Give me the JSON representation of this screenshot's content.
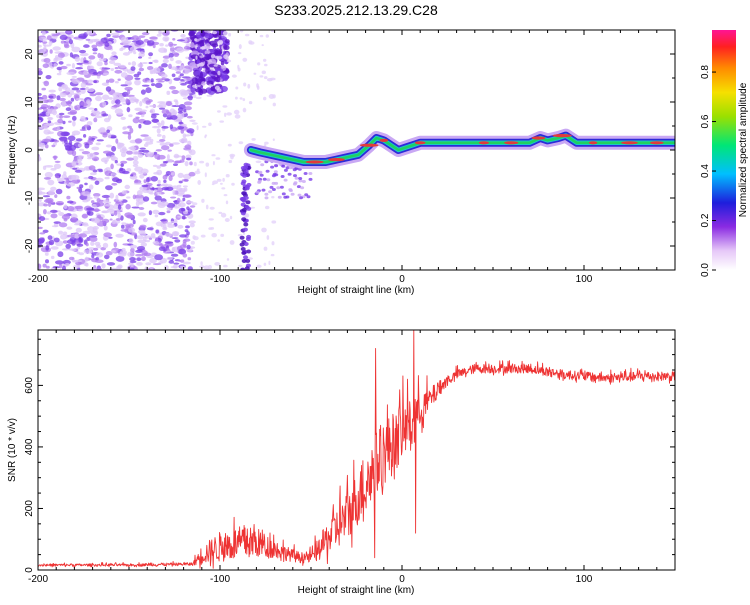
{
  "title": "S233.2025.212.13.29.C28",
  "colors": {
    "snr_line": "#ee3333",
    "speckle": "#7a3ee8",
    "ridge_outer": "#2b2bd8",
    "ridge_mid": "#18c8c8",
    "ridge_core": "#e23a3a"
  },
  "chart_data": [
    {
      "type": "heatmap",
      "xlabel": "Height of straight line (km)",
      "ylabel": "Frequency (Hz)",
      "xlim": [
        -200,
        150
      ],
      "ylim": [
        -25,
        25
      ],
      "x_ticks": [
        -200,
        -100,
        0,
        100
      ],
      "x_tick_labels": [
        "-200",
        "-100",
        "0",
        "100"
      ],
      "y_ticks": [
        -20,
        -10,
        0,
        10,
        20
      ],
      "y_tick_labels": [
        "-20",
        "-10",
        "0",
        "10",
        "20"
      ],
      "grid": false,
      "colorbar": {
        "label": "Normalized spectral amplitude",
        "range": [
          0,
          0.97
        ],
        "ticks": [
          0,
          0.2,
          0.4,
          0.6,
          0.8
        ],
        "tick_labels": [
          "0.0",
          "0.2",
          "0.4",
          "0.6",
          "0.8"
        ]
      },
      "ridge": {
        "x": [
          -83,
          -78,
          -72,
          -66,
          -60,
          -54,
          -48,
          -42,
          -36,
          -30,
          -24,
          -18,
          -14,
          -10,
          -6,
          -2,
          2,
          6,
          10,
          20,
          30,
          40,
          50,
          60,
          70,
          76,
          80,
          86,
          90,
          96,
          110,
          125,
          140,
          150
        ],
        "freq": [
          0,
          -0.5,
          -1,
          -1.5,
          -2,
          -2.5,
          -2.5,
          -2.5,
          -2,
          -1.5,
          -1,
          1,
          2.5,
          2,
          1,
          0,
          0.5,
          1,
          1.5,
          1.5,
          1.5,
          1.5,
          1.5,
          1.5,
          1.5,
          2.5,
          2,
          2.5,
          3,
          1.5,
          1.5,
          1.5,
          1.5,
          1.5
        ]
      }
    },
    {
      "type": "line",
      "xlabel": "Height of straight line (km)",
      "ylabel": "SNR (10 * v/v)",
      "xlim": [
        -200,
        150
      ],
      "ylim": [
        0,
        780
      ],
      "x_ticks": [
        -200,
        -100,
        0,
        100
      ],
      "x_tick_labels": [
        "-200",
        "-100",
        "0",
        "100"
      ],
      "y_ticks": [
        0,
        200,
        400,
        600
      ],
      "y_tick_labels": [
        "0",
        "200",
        "400",
        "600"
      ],
      "grid": false,
      "series": [
        {
          "color": "#ee3333",
          "envelope": {
            "x": [
              -200,
              -150,
              -115,
              -110,
              -100,
              -90,
              -80,
              -75,
              -70,
              -65,
              -60,
              -55,
              -50,
              -45,
              -40,
              -35,
              -30,
              -25,
              -20,
              -15,
              -10,
              -5,
              0,
              5,
              10,
              15,
              20,
              25,
              30,
              35,
              40,
              50,
              60,
              70,
              80,
              90,
              100,
              110,
              120,
              130,
              140,
              150
            ],
            "base": [
              15,
              15,
              18,
              40,
              60,
              70,
              75,
              65,
              60,
              50,
              40,
              35,
              35,
              60,
              90,
              120,
              150,
              200,
              250,
              300,
              350,
              380,
              420,
              450,
              500,
              540,
              580,
              610,
              630,
              640,
              650,
              650,
              650,
              650,
              640,
              630,
              625,
              620,
              620,
              625,
              625,
              625
            ],
            "amp": [
              8,
              8,
              10,
              60,
              100,
              110,
              100,
              80,
              60,
              50,
              40,
              35,
              40,
              80,
              120,
              140,
              160,
              180,
              200,
              220,
              220,
              200,
              180,
              160,
              120,
              80,
              50,
              35,
              30,
              30,
              30,
              30,
              30,
              30,
              30,
              30,
              30,
              30,
              30,
              30,
              30,
              30
            ]
          },
          "spikes": [
            {
              "x": -14.5,
              "y": 720
            },
            {
              "x": 6.5,
              "y": 780
            },
            {
              "x": 3,
              "y": 620
            },
            {
              "x": 7.5,
              "y": 120
            },
            {
              "x": -15,
              "y": 40
            },
            {
              "x": -3,
              "y": 480
            }
          ]
        }
      ]
    }
  ]
}
